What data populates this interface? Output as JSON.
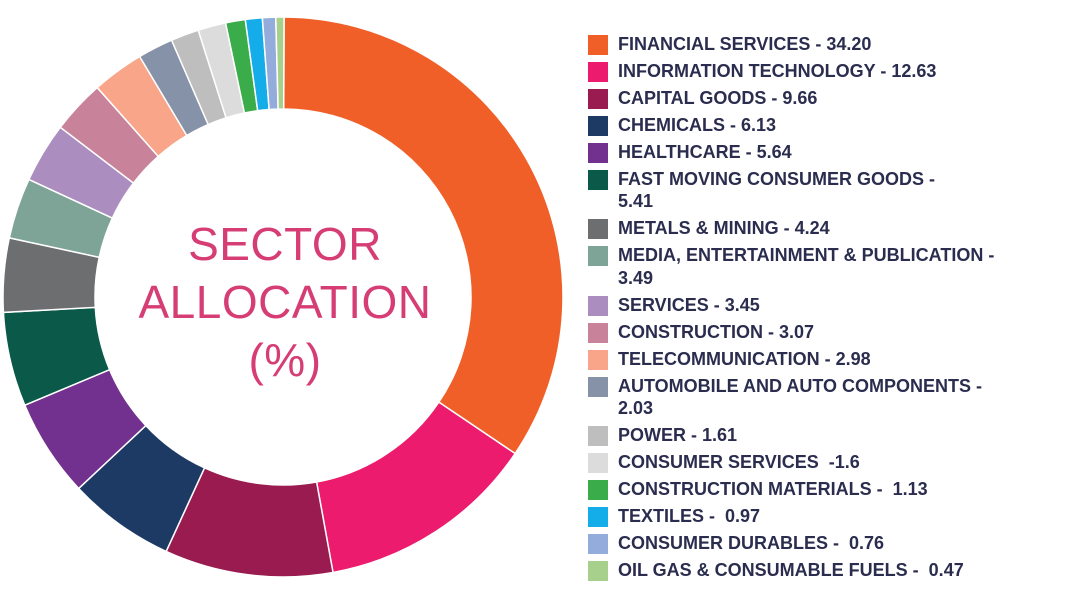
{
  "chart_data": {
    "type": "pie",
    "title": [
      "SECTOR",
      "ALLOCATION",
      "(%)"
    ],
    "slices": [
      {
        "label": "FINANCIAL SERVICES - 34.20",
        "value": 34.2,
        "color": "#f05f28"
      },
      {
        "label": "INFORMATION TECHNOLOGY - 12.63",
        "value": 12.63,
        "color": "#ec1b6d"
      },
      {
        "label": "CAPITAL GOODS - 9.66",
        "value": 9.66,
        "color": "#991b4f"
      },
      {
        "label": "CHEMICALS - 6.13",
        "value": 6.13,
        "color": "#1d3a64"
      },
      {
        "label": "HEALTHCARE - 5.64",
        "value": 5.64,
        "color": "#72308f"
      },
      {
        "label": "FAST MOVING CONSUMER GOODS - 5.41",
        "value": 5.41,
        "color": "#0b5949"
      },
      {
        "label": "METALS & MINING - 4.24",
        "value": 4.24,
        "color": "#6d6e70"
      },
      {
        "label": "MEDIA, ENTERTAINMENT & PUBLICATION - 3.49",
        "value": 3.49,
        "color": "#7ea498"
      },
      {
        "label": "SERVICES - 3.45",
        "value": 3.45,
        "color": "#ab8dc0"
      },
      {
        "label": "CONSTRUCTION - 3.07",
        "value": 3.07,
        "color": "#c8839b"
      },
      {
        "label": "TELECOMMUNICATION - 2.98",
        "value": 2.98,
        "color": "#f8a58a"
      },
      {
        "label": "AUTOMOBILE AND AUTO COMPONENTS - 2.03",
        "value": 2.03,
        "color": "#8592a7"
      },
      {
        "label": "POWER - 1.61",
        "value": 1.61,
        "color": "#bebebe"
      },
      {
        "label": "CONSUMER SERVICES  -1.6",
        "value": 1.6,
        "color": "#dcdcdc"
      },
      {
        "label": "CONSTRUCTION MATERIALS -  1.13",
        "value": 1.13,
        "color": "#3aac4a"
      },
      {
        "label": "TEXTILES -  0.97",
        "value": 0.97,
        "color": "#14adea"
      },
      {
        "label": "CONSUMER DURABLES -  0.76",
        "value": 0.76,
        "color": "#94acdc"
      },
      {
        "label": "OIL GAS & CONSUMABLE FUELS -  0.47",
        "value": 0.47,
        "color": "#a6d08b"
      }
    ],
    "legend_lines": [
      [
        "FINANCIAL SERVICES - 34.20"
      ],
      [
        "INFORMATION TECHNOLOGY - 12.63"
      ],
      [
        "CAPITAL GOODS - 9.66"
      ],
      [
        "CHEMICALS - 6.13"
      ],
      [
        "HEALTHCARE - 5.64"
      ],
      [
        "FAST MOVING CONSUMER GOODS -",
        "5.41"
      ],
      [
        "METALS & MINING - 4.24"
      ],
      [
        "MEDIA, ENTERTAINMENT & PUBLICATION -",
        "3.49"
      ],
      [
        "SERVICES - 3.45"
      ],
      [
        "CONSTRUCTION - 3.07"
      ],
      [
        "TELECOMMUNICATION - 2.98"
      ],
      [
        "AUTOMOBILE AND AUTO COMPONENTS -",
        "2.03"
      ],
      [
        "POWER - 1.61"
      ],
      [
        "CONSUMER SERVICES  -1.6"
      ],
      [
        "CONSTRUCTION MATERIALS -  1.13"
      ],
      [
        "TEXTILES -  0.97"
      ],
      [
        "CONSUMER DURABLES -  0.76"
      ],
      [
        "OIL GAS & CONSUMABLE FUELS -  0.47"
      ]
    ]
  }
}
